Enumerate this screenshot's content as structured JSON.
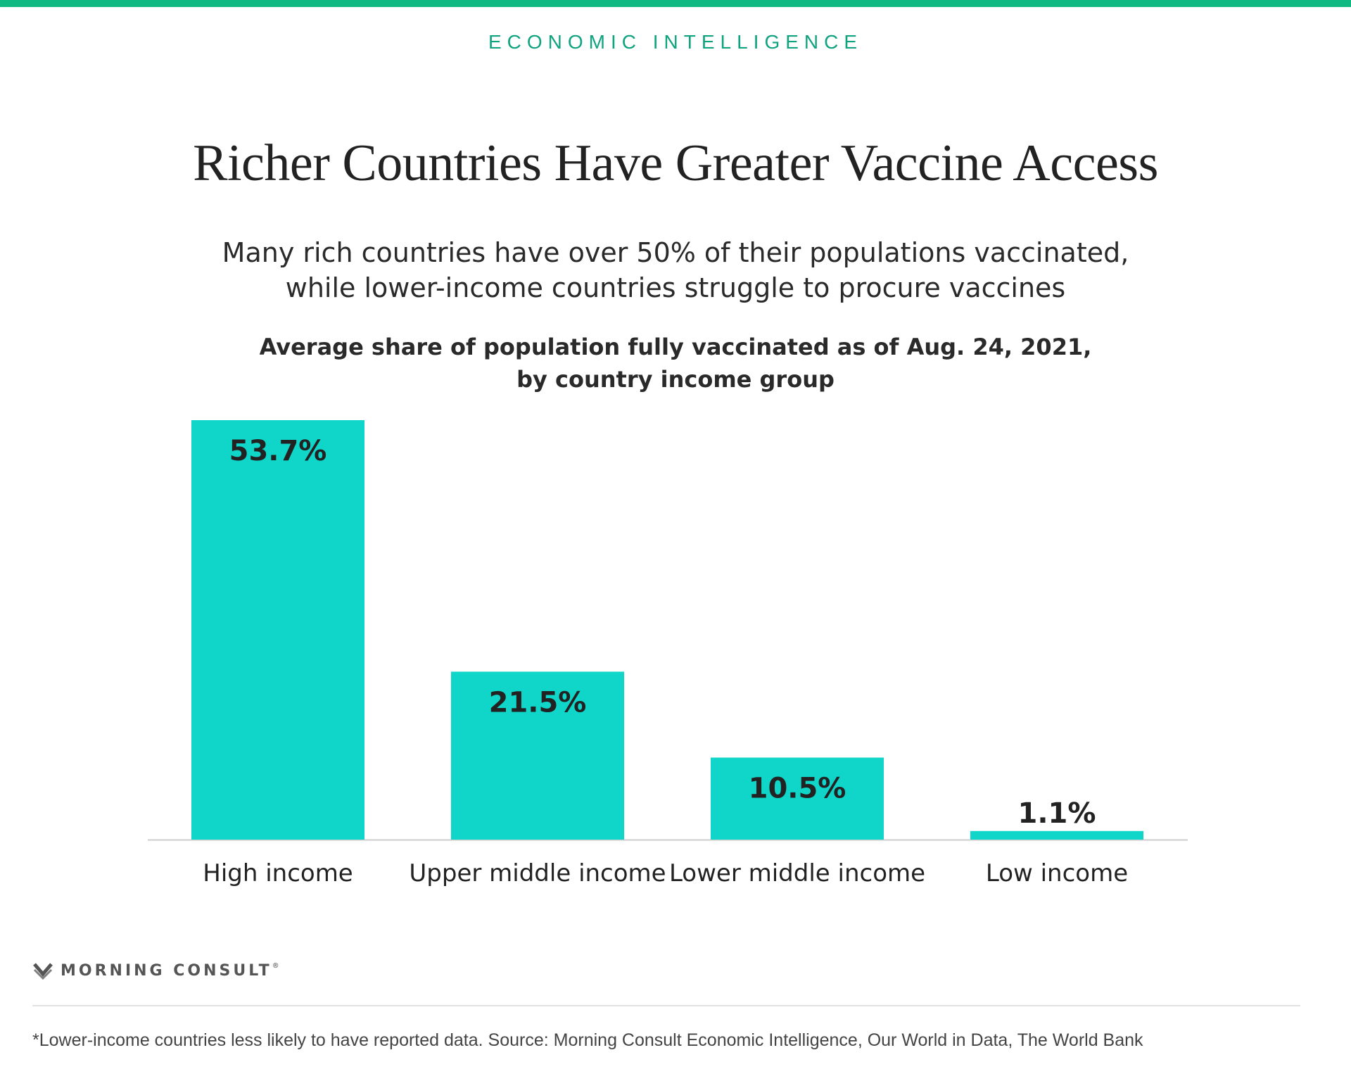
{
  "header": {
    "kicker": "ECONOMIC INTELLIGENCE",
    "accent_color": "#10b981",
    "kicker_color": "#10a37f"
  },
  "subtitle": {
    "line1": "Many rich countries have over 50% of their populations vaccinated,",
    "line2": "while lower-income countries struggle to procure vaccines"
  },
  "chart_data": {
    "type": "bar",
    "title": "Richer Countries Have Greater Vaccine Access",
    "subtitle_line1": "Average share of population fully vaccinated as of Aug. 24, 2021,",
    "subtitle_line2": "by country income group",
    "categories": [
      "High income",
      "Upper middle income",
      "Lower middle income",
      "Low income"
    ],
    "values": [
      53.7,
      21.5,
      10.5,
      1.1
    ],
    "value_labels": [
      "53.7%",
      "21.5%",
      "10.5%",
      "1.1%"
    ],
    "unit": "%",
    "ylim": [
      0,
      53.7
    ],
    "grid": false,
    "legend": "none",
    "bar_color": "#0fd6c9",
    "baseline_color": "#cccccc"
  },
  "branding": {
    "logo_text": "MORNING CONSULT",
    "logo_reg": "®",
    "logo_icon": "morning-consult-m-icon"
  },
  "footnote": "*Lower-income countries less likely to have reported data. Source: Morning Consult Economic Intelligence, Our World in Data, The World Bank"
}
